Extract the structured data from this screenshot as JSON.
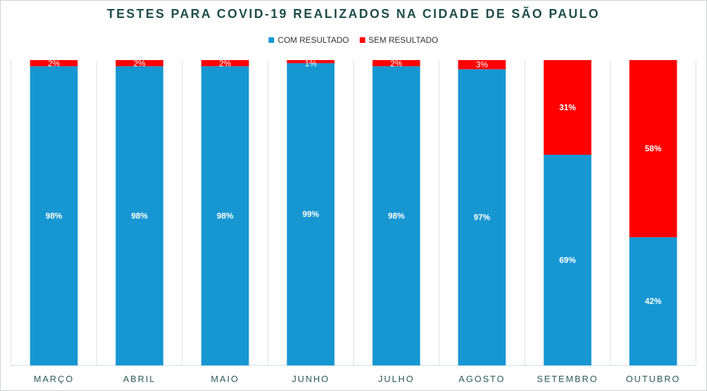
{
  "chart_data": {
    "type": "bar",
    "stacked": true,
    "normalized": true,
    "title": "TESTES PARA COVID-19 REALIZADOS NA CIDADE DE SÃO PAULO",
    "categories": [
      "MARÇO",
      "ABRIL",
      "MAIO",
      "JUNHO",
      "JULHO",
      "AGOSTO",
      "SETEMBRO",
      "OUTUBRO"
    ],
    "series": [
      {
        "name": "COM RESULTADO",
        "color": "#1797d2",
        "values": [
          98,
          98,
          98,
          99,
          98,
          97,
          69,
          42
        ],
        "labels": [
          "98%",
          "98%",
          "98%",
          "99%",
          "98%",
          "97%",
          "69%",
          "42%"
        ]
      },
      {
        "name": "SEM RESULTADO",
        "color": "#ff0000",
        "values": [
          2,
          2,
          2,
          1,
          2,
          3,
          31,
          58
        ],
        "labels": [
          "2%",
          "2%",
          "2%",
          "1%",
          "2%",
          "3%",
          "31%",
          "58%"
        ]
      }
    ],
    "ylim": [
      0,
      100
    ],
    "legend": "top",
    "grid": "vertical separators"
  }
}
